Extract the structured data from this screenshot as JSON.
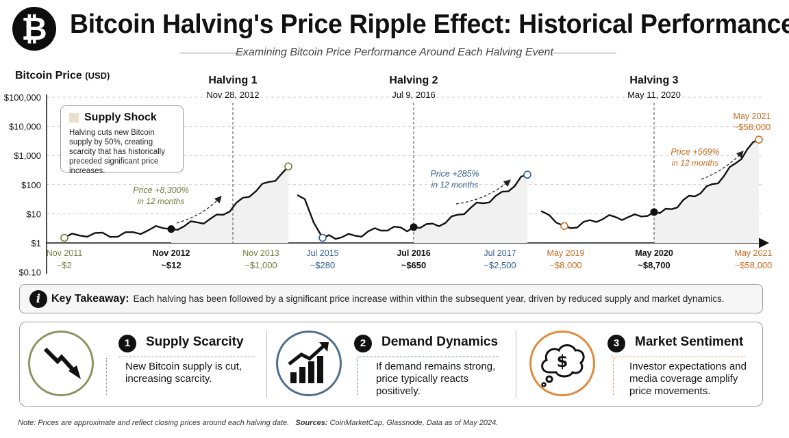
{
  "header": {
    "logo_symbol": "₿",
    "title": "Bitcoin Halving's Price Ripple Effect: Historical Performance",
    "subtitle": "Examining Bitcoin Price Performance Around Each Halving Event"
  },
  "chart_data": {
    "type": "line",
    "ylabel": "Bitcoin Price",
    "ylabel_unit": "(USD)",
    "y_scale": "log",
    "ylim": [
      0.1,
      100000
    ],
    "y_ticks": [
      "$100,000",
      "$10,000",
      "$1,000",
      "$100",
      "$10",
      "$1",
      "$0.10"
    ],
    "grid": "horizontal dashed",
    "halvings": [
      {
        "label": "Halving 1",
        "date": "Nov 28, 2012"
      },
      {
        "label": "Halving 2",
        "date": "Jul 9, 2016"
      },
      {
        "label": "Halving 3",
        "date": "May 11, 2020"
      }
    ],
    "segments": [
      {
        "color": "#6e7d38",
        "points": [
          {
            "date": "Nov 2011",
            "label": "~$2"
          },
          {
            "date": "Nov 2012",
            "label": "~$12"
          },
          {
            "date": "Nov 2013",
            "label": "~$1,000"
          }
        ],
        "gain_label": "Price +8,300%",
        "gain_sub": "in 12 months"
      },
      {
        "color": "#2f5f8f",
        "points": [
          {
            "date": "Jul 2015",
            "label": "~$280"
          },
          {
            "date": "Jul 2016",
            "label": "~$650"
          },
          {
            "date": "Jul 2017",
            "label": "~$2,500"
          }
        ],
        "gain_label": "Price +285%",
        "gain_sub": "in 12 months"
      },
      {
        "color": "#c86a1e",
        "points": [
          {
            "date": "May 2019",
            "label": "~$8,000"
          },
          {
            "date": "May 2020",
            "label": "~$8,700"
          },
          {
            "date": "May 2021",
            "label": "~$58,000"
          }
        ],
        "peak_label": "May 2021",
        "peak_value": "~$58,000",
        "gain_label": "Price +569%",
        "gain_sub": "in 12 months"
      }
    ]
  },
  "annotation": {
    "title": "Supply Shock",
    "body": "Halving cuts new Bitcoin supply by 50%, creating scarcity that has historically preceded significant price increases."
  },
  "takeaway": {
    "label": "Key Takeaway:",
    "text": "Each halving has been followed by a significant price  increase  within vithin  the  subsequent  year, driven by reduced supply and market dynamics."
  },
  "factors": [
    {
      "num": "1",
      "title": "Supply Scarcity",
      "desc": "New Bitcoin supply is cut, increasing scarcity.",
      "icon": "downtrend-arrow-icon",
      "color": "#8c9560"
    },
    {
      "num": "2",
      "title": "Demand Dynamics",
      "desc": "If demand remains strong, price typically reacts positively.",
      "icon": "bar-chart-uptrend-icon",
      "color": "#4f6d8c"
    },
    {
      "num": "3",
      "title": "Market Sentiment",
      "desc": "Investor expectations and media coverage amplify price movements.",
      "icon": "thought-bubble-dollar-icon",
      "color": "#e08a3a"
    }
  ],
  "footnote": {
    "note": "Note: Prices are approximate and reflect closing prices around  each  halving date.",
    "sources_label": "Sources:",
    "sources": "CoinMarketCap, Glassnode, Data as of May 2024."
  }
}
